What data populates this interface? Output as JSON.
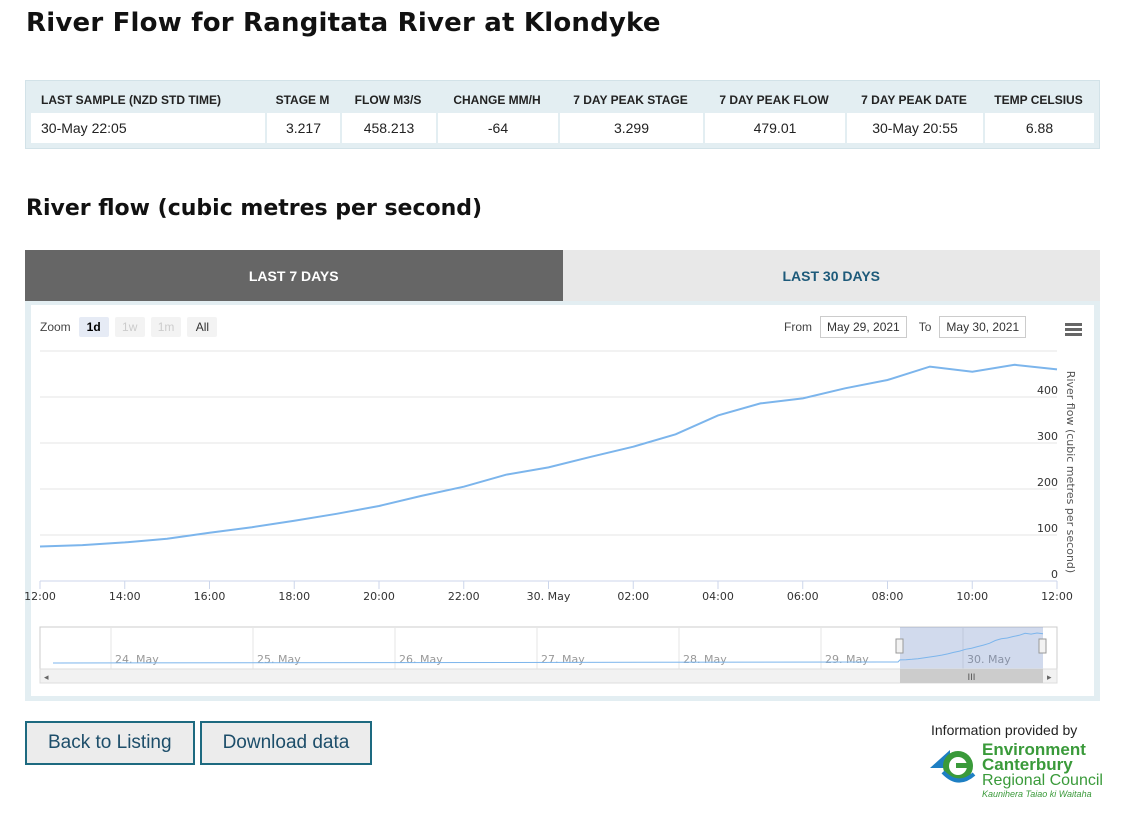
{
  "page": {
    "title": "River Flow for Rangitata River at Klondyke",
    "section_title": "River flow (cubic metres per second)"
  },
  "summary": {
    "headers": [
      "LAST SAMPLE (NZD STD TIME)",
      "STAGE M",
      "FLOW M3/S",
      "CHANGE MM/H",
      "7 DAY PEAK STAGE",
      "7 DAY PEAK FLOW",
      "7 DAY PEAK DATE",
      "TEMP CELSIUS"
    ],
    "values": [
      "30-May 22:05",
      "3.217",
      "458.213",
      "-64",
      "3.299",
      "479.01",
      "30-May 20:55",
      "6.88"
    ]
  },
  "tabs": [
    {
      "label": "LAST 7 DAYS",
      "active": true
    },
    {
      "label": "LAST 30 DAYS",
      "active": false
    }
  ],
  "chart_controls": {
    "zoom_label": "Zoom",
    "zoom_buttons": [
      {
        "label": "1d",
        "state": "selected"
      },
      {
        "label": "1w",
        "state": "disabled"
      },
      {
        "label": "1m",
        "state": "disabled"
      },
      {
        "label": "All",
        "state": "enabled"
      }
    ],
    "from_label": "From",
    "from_value": "May 29, 2021",
    "to_label": "To",
    "to_value": "May 30, 2021",
    "menu_icon": "hamburger-menu-icon"
  },
  "chart_data": {
    "type": "line",
    "title": "",
    "xlabel": "",
    "ylabel": "River flow (cubic metres per second)",
    "x_ticks": [
      "12:00",
      "14:00",
      "16:00",
      "18:00",
      "20:00",
      "22:00",
      "30. May",
      "02:00",
      "04:00",
      "06:00",
      "08:00",
      "10:00",
      "12:00"
    ],
    "y_ticks": [
      0,
      100,
      200,
      300,
      400
    ],
    "ylim": [
      0,
      500
    ],
    "x_unit": "hours from 29 May 12:00",
    "xlim": [
      0,
      24
    ],
    "grid": true,
    "y_axis_side": "right",
    "line_color": "#7cb5ec",
    "series": [
      {
        "x": [
          0,
          1,
          2,
          3,
          4,
          5,
          6,
          7,
          8,
          9,
          10,
          11,
          12,
          13,
          14,
          15,
          16,
          17,
          18,
          19,
          20,
          21,
          22,
          23,
          24
        ],
        "values": [
          75,
          78,
          84,
          92,
          105,
          117,
          131,
          146,
          163,
          185,
          205,
          231,
          247,
          270,
          292,
          319,
          360,
          386,
          397,
          419,
          437,
          466,
          455,
          470,
          460
        ]
      }
    ],
    "navigator": {
      "labels": [
        "24. May",
        "25. May",
        "26. May",
        "27. May",
        "28. May",
        "29. May",
        "30. May"
      ],
      "selected_range": [
        "29 May 12:00",
        "30 May 12:00"
      ]
    }
  },
  "buttons": {
    "back_label": "Back to Listing",
    "download_label": "Download data"
  },
  "credit": {
    "text": "Information provided by",
    "logo_line1": "Environment",
    "logo_line2": "Canterbury",
    "logo_line3": "Regional Council",
    "logo_line4": "Kaunihera Taiao ki Waitaha",
    "logo_colors": {
      "green": "#3a9a3a",
      "blue": "#1e7fc3"
    }
  }
}
